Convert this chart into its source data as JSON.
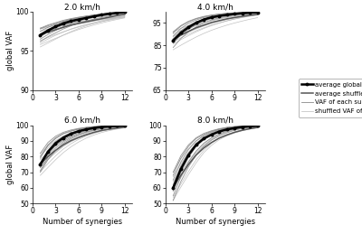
{
  "titles": [
    "2.0 km/h",
    "4.0 km/h",
    "6.0 km/h",
    "8.0 km/h"
  ],
  "x_synergies": [
    1,
    2,
    3,
    4,
    5,
    6,
    7,
    8,
    9,
    10,
    11,
    12
  ],
  "avg_vaf": {
    "2.0": [
      97.0,
      97.6,
      98.1,
      98.5,
      98.8,
      99.0,
      99.2,
      99.4,
      99.6,
      99.75,
      99.85,
      99.95
    ],
    "4.0": [
      87.0,
      90.5,
      93.0,
      95.0,
      96.5,
      97.5,
      98.1,
      98.6,
      99.0,
      99.3,
      99.55,
      99.72
    ],
    "6.0": [
      75.0,
      83.0,
      88.5,
      92.0,
      94.5,
      96.2,
      97.4,
      98.3,
      98.9,
      99.3,
      99.6,
      99.8
    ],
    "8.0": [
      60.0,
      72.0,
      81.0,
      87.5,
      91.5,
      94.0,
      96.0,
      97.3,
      98.2,
      98.9,
      99.4,
      99.75
    ]
  },
  "avg_shuffled_vaf": {
    "2.0": [
      97.0,
      97.4,
      97.7,
      98.0,
      98.3,
      98.5,
      98.7,
      98.9,
      99.1,
      99.3,
      99.5,
      99.65
    ],
    "4.0": [
      87.5,
      89.5,
      91.2,
      92.8,
      94.0,
      95.2,
      96.0,
      96.8,
      97.4,
      97.9,
      98.4,
      98.8
    ],
    "6.0": [
      75.5,
      80.0,
      84.0,
      87.5,
      90.2,
      92.2,
      94.0,
      95.5,
      96.7,
      97.5,
      98.2,
      98.8
    ],
    "8.0": [
      60.5,
      68.0,
      75.0,
      81.0,
      85.5,
      89.0,
      91.8,
      93.8,
      95.5,
      96.8,
      97.8,
      98.6
    ]
  },
  "subject_vaf": {
    "2.0": [
      [
        97.2,
        97.7,
        98.2,
        98.6,
        98.9,
        99.1,
        99.3,
        99.5,
        99.65,
        99.75,
        99.85,
        99.93
      ],
      [
        97.5,
        98.0,
        98.4,
        98.7,
        99.0,
        99.2,
        99.4,
        99.55,
        99.68,
        99.78,
        99.87,
        99.94
      ],
      [
        97.8,
        98.2,
        98.5,
        98.8,
        99.05,
        99.25,
        99.42,
        99.57,
        99.7,
        99.8,
        99.88,
        99.95
      ],
      [
        96.8,
        97.4,
        97.9,
        98.3,
        98.7,
        99.0,
        99.2,
        99.4,
        99.55,
        99.67,
        99.78,
        99.88
      ],
      [
        97.0,
        97.5,
        98.0,
        98.4,
        98.7,
        99.0,
        99.2,
        99.38,
        99.52,
        99.65,
        99.76,
        99.86
      ],
      [
        96.5,
        97.1,
        97.6,
        98.1,
        98.5,
        98.8,
        99.05,
        99.25,
        99.42,
        99.57,
        99.7,
        99.82
      ],
      [
        97.9,
        98.3,
        98.6,
        98.9,
        99.12,
        99.3,
        99.45,
        99.58,
        99.7,
        99.79,
        99.87,
        99.94
      ],
      [
        96.2,
        96.8,
        97.3,
        97.8,
        98.2,
        98.55,
        98.82,
        99.05,
        99.25,
        99.43,
        99.6,
        99.75
      ]
    ],
    "4.0": [
      [
        87.5,
        91.0,
        93.5,
        95.2,
        96.5,
        97.4,
        98.1,
        98.6,
        99.0,
        99.3,
        99.52,
        99.68
      ],
      [
        89.0,
        92.5,
        94.8,
        96.3,
        97.4,
        98.1,
        98.6,
        99.0,
        99.3,
        99.52,
        99.68,
        99.8
      ],
      [
        86.0,
        89.5,
        92.2,
        94.2,
        95.8,
        97.0,
        97.8,
        98.4,
        98.9,
        99.2,
        99.48,
        99.65
      ],
      [
        90.5,
        93.5,
        95.5,
        96.8,
        97.7,
        98.4,
        98.9,
        99.2,
        99.45,
        99.62,
        99.75,
        99.85
      ],
      [
        88.0,
        91.5,
        93.8,
        95.5,
        96.8,
        97.7,
        98.3,
        98.8,
        99.15,
        99.4,
        99.58,
        99.72
      ],
      [
        84.0,
        88.0,
        91.0,
        93.2,
        95.0,
        96.3,
        97.2,
        97.9,
        98.5,
        98.9,
        99.25,
        99.5
      ],
      [
        91.0,
        93.8,
        95.7,
        97.0,
        97.9,
        98.5,
        98.95,
        99.28,
        99.5,
        99.65,
        99.77,
        99.86
      ],
      [
        87.0,
        90.5,
        93.0,
        94.8,
        96.2,
        97.2,
        98.0,
        98.55,
        99.0,
        99.3,
        99.52,
        99.68
      ]
    ],
    "6.0": [
      [
        76.0,
        84.0,
        89.5,
        93.0,
        95.2,
        96.8,
        97.8,
        98.6,
        99.1,
        99.4,
        99.65,
        99.82
      ],
      [
        79.0,
        87.0,
        91.5,
        94.5,
        96.2,
        97.5,
        98.3,
        98.9,
        99.3,
        99.55,
        99.72,
        99.85
      ],
      [
        74.0,
        82.0,
        87.5,
        91.5,
        94.0,
        95.8,
        97.0,
        98.0,
        98.7,
        99.15,
        99.45,
        99.68
      ],
      [
        71.0,
        79.5,
        85.5,
        89.5,
        92.2,
        94.2,
        95.8,
        97.0,
        97.9,
        98.6,
        99.1,
        99.45
      ],
      [
        80.0,
        87.5,
        92.0,
        94.8,
        96.5,
        97.7,
        98.5,
        99.0,
        99.4,
        99.62,
        99.78,
        99.88
      ],
      [
        70.0,
        78.0,
        84.0,
        88.5,
        91.5,
        93.8,
        95.5,
        96.8,
        97.8,
        98.5,
        99.0,
        99.4
      ],
      [
        82.0,
        89.0,
        93.0,
        95.5,
        97.0,
        98.0,
        98.7,
        99.2,
        99.55,
        99.75,
        99.87,
        99.93
      ],
      [
        73.0,
        81.0,
        87.0,
        90.5,
        93.0,
        95.0,
        96.5,
        97.6,
        98.4,
        98.95,
        99.35,
        99.62
      ]
    ],
    "8.0": [
      [
        62.0,
        74.0,
        82.5,
        88.5,
        92.5,
        95.0,
        96.8,
        98.0,
        98.8,
        99.3,
        99.6,
        99.8
      ],
      [
        58.0,
        70.0,
        79.5,
        86.5,
        91.0,
        93.8,
        95.8,
        97.2,
        98.2,
        98.85,
        99.3,
        99.62
      ],
      [
        65.0,
        76.5,
        84.5,
        90.0,
        93.5,
        95.8,
        97.3,
        98.3,
        99.0,
        99.4,
        99.65,
        99.82
      ],
      [
        55.0,
        67.0,
        76.5,
        83.5,
        88.5,
        92.0,
        94.5,
        96.3,
        97.6,
        98.5,
        99.05,
        99.5
      ],
      [
        68.0,
        79.0,
        86.5,
        91.5,
        94.2,
        96.2,
        97.5,
        98.5,
        99.1,
        99.48,
        99.72,
        99.86
      ],
      [
        52.0,
        64.0,
        73.5,
        81.0,
        86.5,
        90.5,
        93.2,
        95.2,
        96.8,
        97.9,
        98.65,
        99.2
      ],
      [
        70.0,
        80.5,
        87.5,
        92.0,
        94.8,
        96.5,
        97.8,
        98.7,
        99.2,
        99.52,
        99.75,
        99.88
      ],
      [
        60.0,
        72.0,
        81.0,
        87.5,
        91.5,
        94.0,
        95.8,
        97.2,
        98.2,
        98.88,
        99.32,
        99.65
      ]
    ]
  },
  "shuffled_subject_vaf": {
    "2.0": [
      [
        96.0,
        96.5,
        97.0,
        97.4,
        97.8,
        98.1,
        98.4,
        98.6,
        98.85,
        99.05,
        99.25,
        99.45
      ],
      [
        97.5,
        97.8,
        98.05,
        98.28,
        98.5,
        98.68,
        98.84,
        98.98,
        99.1,
        99.22,
        99.33,
        99.44
      ],
      [
        95.5,
        96.0,
        96.5,
        97.0,
        97.45,
        97.85,
        98.2,
        98.5,
        98.75,
        98.98,
        99.18,
        99.38
      ],
      [
        97.8,
        98.0,
        98.2,
        98.38,
        98.55,
        98.7,
        98.84,
        98.97,
        99.08,
        99.19,
        99.29,
        99.39
      ],
      [
        97.2,
        97.5,
        97.78,
        98.03,
        98.26,
        98.47,
        98.65,
        98.82,
        98.97,
        99.1,
        99.22,
        99.34
      ],
      [
        96.3,
        96.7,
        97.08,
        97.43,
        97.75,
        98.04,
        98.3,
        98.53,
        98.74,
        98.93,
        99.1,
        99.26
      ],
      [
        97.9,
        98.1,
        98.28,
        98.45,
        98.6,
        98.73,
        98.86,
        98.97,
        99.07,
        99.17,
        99.26,
        99.35
      ],
      [
        95.8,
        96.2,
        96.6,
        97.0,
        97.38,
        97.72,
        98.03,
        98.31,
        98.57,
        98.8,
        99.01,
        99.21
      ]
    ],
    "4.0": [
      [
        86.5,
        88.3,
        90.0,
        91.5,
        92.8,
        94.0,
        95.0,
        95.9,
        96.7,
        97.4,
        98.0,
        98.5
      ],
      [
        89.0,
        90.8,
        92.4,
        93.8,
        95.0,
        96.0,
        96.8,
        97.5,
        98.05,
        98.52,
        98.93,
        99.28
      ],
      [
        85.5,
        87.5,
        89.3,
        91.0,
        92.5,
        93.8,
        94.9,
        95.9,
        96.75,
        97.48,
        98.1,
        98.65
      ],
      [
        90.0,
        91.5,
        92.9,
        94.1,
        95.1,
        96.0,
        96.75,
        97.4,
        97.96,
        98.45,
        98.88,
        99.26
      ],
      [
        88.0,
        89.8,
        91.4,
        92.8,
        94.0,
        95.1,
        95.95,
        96.72,
        97.38,
        97.96,
        98.48,
        98.94
      ],
      [
        83.0,
        85.0,
        86.9,
        88.7,
        90.3,
        91.7,
        92.9,
        94.0,
        94.95,
        95.82,
        96.62,
        97.34
      ],
      [
        91.0,
        92.5,
        93.8,
        94.9,
        95.85,
        96.68,
        97.38,
        97.97,
        98.48,
        98.92,
        99.3,
        99.62
      ],
      [
        87.5,
        89.3,
        90.9,
        92.3,
        93.6,
        94.7,
        95.65,
        96.48,
        97.2,
        97.84,
        98.42,
        98.93
      ]
    ],
    "6.0": [
      [
        73.0,
        78.0,
        82.5,
        86.5,
        89.5,
        91.8,
        93.6,
        95.2,
        96.4,
        97.4,
        98.2,
        98.85
      ],
      [
        78.0,
        82.8,
        87.0,
        90.5,
        93.0,
        95.0,
        96.5,
        97.6,
        98.4,
        98.98,
        99.42,
        99.75
      ],
      [
        74.5,
        79.5,
        84.0,
        87.8,
        90.8,
        93.1,
        95.0,
        96.4,
        97.5,
        98.3,
        98.92,
        99.42
      ],
      [
        70.5,
        75.5,
        80.5,
        84.8,
        88.2,
        91.0,
        93.1,
        94.8,
        96.2,
        97.3,
        98.1,
        98.78
      ],
      [
        80.5,
        85.5,
        89.5,
        92.5,
        94.5,
        96.2,
        97.4,
        98.2,
        98.8,
        99.25,
        99.58,
        99.8
      ],
      [
        68.0,
        73.0,
        78.0,
        82.5,
        86.2,
        89.3,
        91.8,
        93.8,
        95.4,
        96.6,
        97.6,
        98.4
      ],
      [
        82.0,
        86.5,
        90.2,
        93.0,
        95.0,
        96.5,
        97.6,
        98.4,
        99.0,
        99.4,
        99.68,
        99.85
      ],
      [
        73.5,
        78.5,
        83.0,
        86.8,
        89.8,
        92.2,
        94.0,
        95.5,
        96.7,
        97.65,
        98.42,
        99.05
      ]
    ],
    "8.0": [
      [
        58.0,
        66.5,
        74.5,
        81.5,
        87.0,
        91.0,
        93.8,
        95.8,
        97.2,
        98.2,
        98.9,
        99.42
      ],
      [
        64.0,
        72.5,
        80.0,
        86.5,
        91.0,
        93.8,
        95.8,
        97.2,
        98.2,
        98.88,
        99.35,
        99.68
      ],
      [
        59.0,
        67.5,
        75.5,
        82.5,
        87.5,
        91.2,
        93.8,
        95.8,
        97.2,
        98.1,
        98.8,
        99.35
      ],
      [
        54.0,
        62.5,
        70.5,
        78.0,
        84.0,
        88.5,
        91.8,
        94.0,
        95.8,
        97.1,
        98.0,
        98.72
      ],
      [
        67.0,
        75.5,
        82.5,
        88.0,
        92.0,
        94.5,
        96.2,
        97.4,
        98.3,
        98.92,
        99.38,
        99.7
      ],
      [
        52.0,
        60.5,
        68.5,
        76.0,
        82.5,
        87.2,
        90.8,
        93.2,
        95.1,
        96.5,
        97.6,
        98.5
      ],
      [
        70.0,
        78.5,
        85.0,
        90.0,
        93.2,
        95.5,
        97.0,
        98.1,
        98.9,
        99.38,
        99.68,
        99.85
      ],
      [
        61.0,
        69.5,
        77.0,
        83.5,
        88.5,
        92.0,
        94.5,
        96.2,
        97.4,
        98.2,
        98.82,
        99.3
      ]
    ]
  },
  "ylims": {
    "2.0": [
      90,
      100
    ],
    "4.0": [
      65,
      100
    ],
    "6.0": [
      50,
      100
    ],
    "8.0": [
      50,
      100
    ]
  },
  "yticks": {
    "2.0": [
      90,
      95,
      100
    ],
    "4.0": [
      65,
      75,
      85,
      95
    ],
    "6.0": [
      50,
      60,
      70,
      80,
      90,
      100
    ],
    "8.0": [
      50,
      60,
      70,
      80,
      90,
      100
    ]
  },
  "xticks": [
    0,
    3,
    6,
    9,
    12
  ],
  "xlabel": "Number of synergies",
  "ylabel": "global VAF",
  "color_avg": "#000000",
  "color_avg_shuffled": "#555555",
  "color_subject": "#888888",
  "color_shuffled_subject": "#bbbbbb",
  "legend_labels": [
    "average global VAF",
    "average shuffled VAF",
    "VAF of each subject",
    "shuffled VAF of each subject"
  ],
  "speeds": [
    "2.0",
    "4.0",
    "6.0",
    "8.0"
  ]
}
